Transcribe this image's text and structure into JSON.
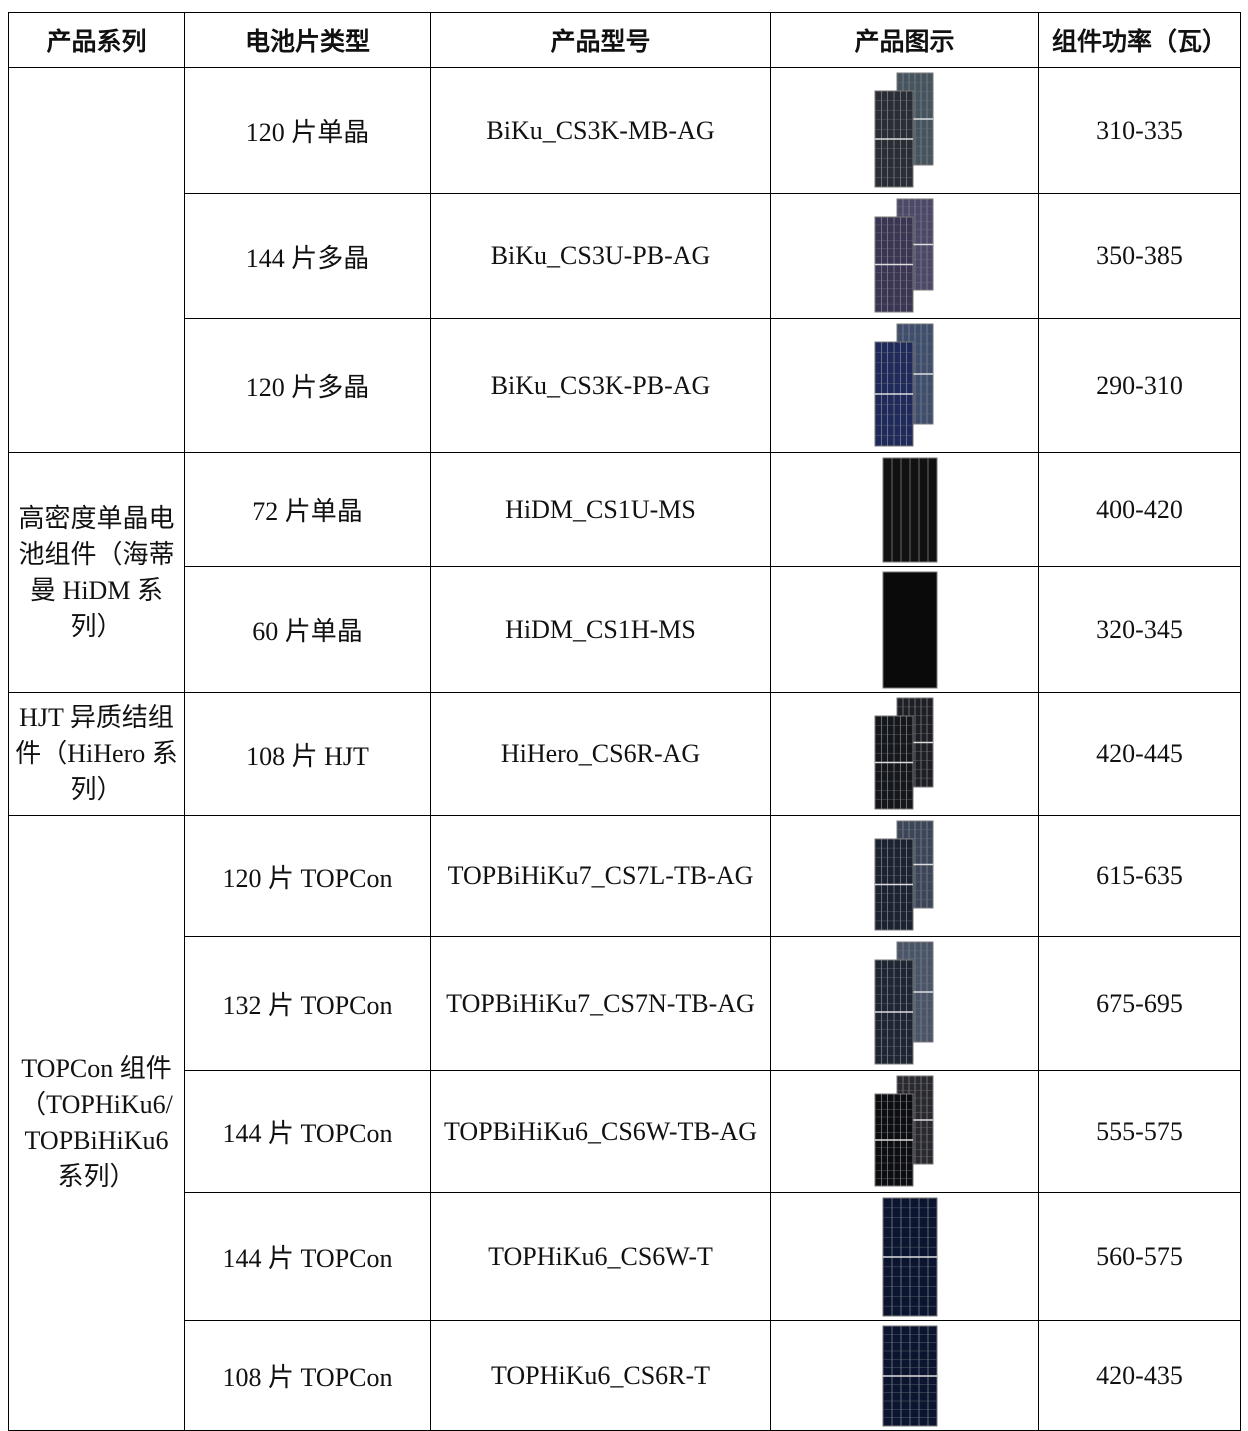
{
  "table": {
    "headers": [
      "产品系列",
      "电池片类型",
      "产品型号",
      "产品图示",
      "组件功率（瓦）"
    ],
    "groups": [
      {
        "rows": [
          {
            "cell_type": "120 片单晶",
            "model": "BiKu_CS3K-MB-AG",
            "power": "310-335"
          },
          {
            "cell_type": "144 片多晶",
            "model": "BiKu_CS3U-PB-AG",
            "power": "350-385"
          },
          {
            "cell_type": "120 片多晶",
            "model": "BiKu_CS3K-PB-AG",
            "power": "290-310"
          }
        ]
      },
      {
        "series": "高密度单晶电池组件（海蒂曼 HiDM 系列）",
        "rows": [
          {
            "cell_type": "72 片单晶",
            "model": "HiDM_CS1U-MS",
            "power": "400-420"
          },
          {
            "cell_type": "60 片单晶",
            "model": "HiDM_CS1H-MS",
            "power": "320-345"
          }
        ]
      },
      {
        "series": "HJT 异质结组件（HiHero 系列）",
        "rows": [
          {
            "cell_type": "108 片 HJT",
            "model": "HiHero_CS6R-AG",
            "power": "420-445"
          }
        ]
      },
      {
        "series": "TOPCon 组件（TOPHiKu6/ TOPBiHiKu6 系列）",
        "rows": [
          {
            "cell_type": "120 片 TOPCon",
            "model": "TOPBiHiKu7_CS7L-TB-AG",
            "power": "615-635"
          },
          {
            "cell_type": "132 片 TOPCon",
            "model": "TOPBiHiKu7_CS7N-TB-AG",
            "power": "675-695"
          },
          {
            "cell_type": "144 片 TOPCon",
            "model": "TOPBiHiKu6_CS6W-TB-AG",
            "power": "555-575"
          },
          {
            "cell_type": "144 片 TOPCon",
            "model": "TOPHiKu6_CS6W-T",
            "power": "560-575"
          },
          {
            "cell_type": "108 片 TOPCon",
            "model": "TOPHiKu6_CS6R-T",
            "power": "420-435"
          }
        ]
      }
    ]
  }
}
